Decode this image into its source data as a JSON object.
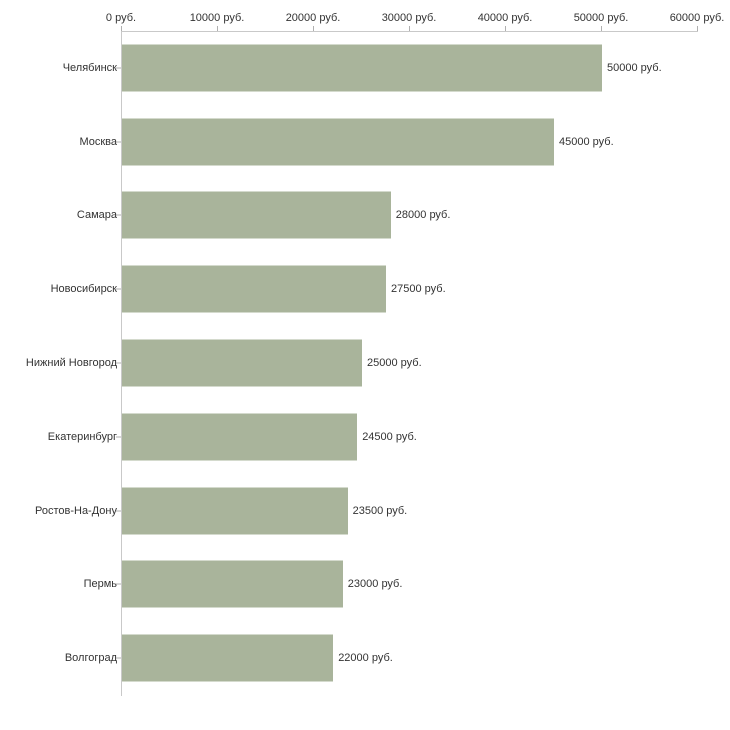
{
  "chart_data": {
    "type": "bar",
    "orientation": "horizontal",
    "title": "",
    "xlabel": "",
    "ylabel": "",
    "xlim": [
      0,
      60000
    ],
    "grid": false,
    "legend": false,
    "bar_color": "#a9b49b",
    "axis_color": "#c9c9c9",
    "categories": [
      "Челябинск",
      "Москва",
      "Самара",
      "Новосибирск",
      "Нижний Новгород",
      "Екатеринбург",
      "Ростов-На-Дону",
      "Пермь",
      "Волгоград"
    ],
    "values": [
      50000,
      45000,
      28000,
      27500,
      25000,
      24500,
      23500,
      23000,
      22000
    ],
    "value_labels": [
      "50000 руб.",
      "45000 руб.",
      "28000 руб.",
      "27500 руб.",
      "25000 руб.",
      "24500 руб.",
      "23500 руб.",
      "23000 руб.",
      "22000 руб."
    ],
    "x_ticks": {
      "values": [
        0,
        10000,
        20000,
        30000,
        40000,
        50000,
        60000
      ],
      "labels": [
        "0 руб.",
        "10000 руб.",
        "20000 руб.",
        "30000 руб.",
        "40000 руб.",
        "50000 руб.",
        "60000 руб."
      ]
    }
  }
}
